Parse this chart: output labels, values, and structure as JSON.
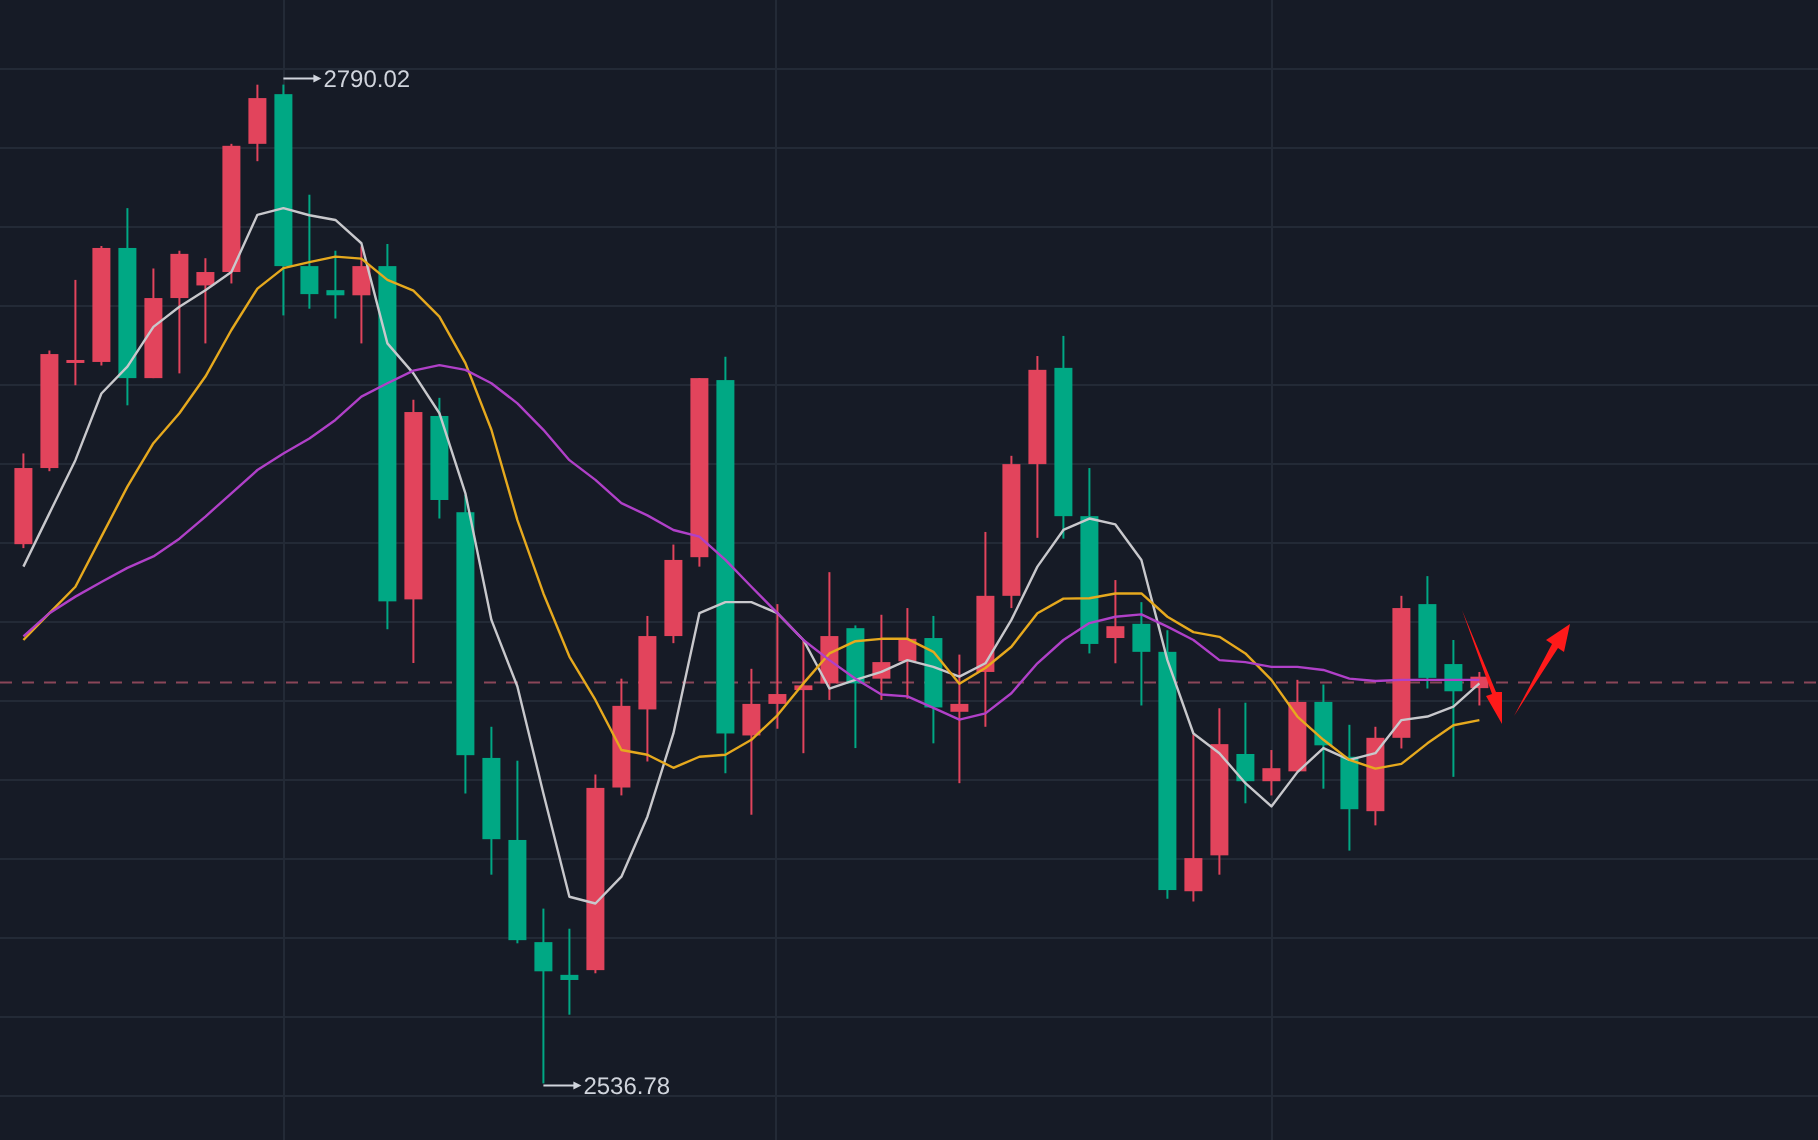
{
  "chart_data": {
    "type": "candlestick",
    "categories": [
      null,
      null,
      null,
      null,
      null,
      null,
      null,
      null,
      null,
      null,
      null,
      null,
      null,
      null,
      null,
      null,
      null,
      null,
      null,
      null,
      null,
      null,
      null,
      null,
      null,
      null,
      null,
      null,
      null,
      null,
      null,
      null,
      null,
      null,
      null,
      null,
      null,
      null,
      null,
      null,
      null,
      null,
      null,
      null,
      null,
      null,
      null,
      null,
      null,
      null,
      null,
      null,
      null,
      null,
      null,
      null,
      null
    ],
    "ohlc": [
      [
        2673.5,
        2696.5,
        2672.5,
        2692.8
      ],
      [
        2692.8,
        2722.6,
        2692.0,
        2721.7
      ],
      [
        2720.0,
        2740.5,
        2713.8,
        2720.2
      ],
      [
        2719.7,
        2749.1,
        2718.8,
        2748.6
      ],
      [
        2748.6,
        2758.7,
        2708.7,
        2715.6
      ],
      [
        2715.6,
        2743.4,
        2715.6,
        2735.9
      ],
      [
        2735.9,
        2747.9,
        2716.8,
        2747.1
      ],
      [
        2739.1,
        2746.0,
        2724.4,
        2742.5
      ],
      [
        2742.5,
        2775.0,
        2739.6,
        2774.5
      ],
      [
        2775.0,
        2790.0,
        2770.6,
        2786.6
      ],
      [
        2787.6,
        2790.02,
        2731.5,
        2744.0
      ],
      [
        2744.0,
        2762.1,
        2733.2,
        2736.9
      ],
      [
        2737.9,
        2747.9,
        2730.7,
        2736.6
      ],
      [
        2736.6,
        2749.0,
        2724.4,
        2744.0
      ],
      [
        2744.0,
        2749.6,
        2651.9,
        2659.0
      ],
      [
        2659.5,
        2710.1,
        2643.4,
        2707.0
      ],
      [
        2706.0,
        2710.6,
        2680.0,
        2684.7
      ],
      [
        2681.6,
        2686.0,
        2610.3,
        2620.0
      ],
      [
        2619.3,
        2627.2,
        2589.7,
        2598.7
      ],
      [
        2598.5,
        2618.6,
        2572.3,
        2573.1
      ],
      [
        2572.6,
        2581.1,
        2536.78,
        2565.2
      ],
      [
        2564.3,
        2576.0,
        2554.2,
        2563.0
      ],
      [
        2565.5,
        2615.1,
        2564.7,
        2611.7
      ],
      [
        2611.8,
        2639.4,
        2609.8,
        2632.5
      ],
      [
        2631.6,
        2655.3,
        2618.4,
        2650.2
      ],
      [
        2650.2,
        2673.4,
        2648.4,
        2669.5
      ],
      [
        2670.2,
        2715.6,
        2667.8,
        2715.6
      ],
      [
        2715.1,
        2721.0,
        2615.4,
        2625.5
      ],
      [
        2625.0,
        2641.9,
        2604.9,
        2633.0
      ],
      [
        2633.0,
        2658.3,
        2626.7,
        2635.5
      ],
      [
        2636.5,
        2649.2,
        2620.5,
        2637.7
      ],
      [
        2638.2,
        2666.4,
        2634.0,
        2650.2
      ],
      [
        2652.2,
        2652.9,
        2621.8,
        2638.2
      ],
      [
        2639.4,
        2655.6,
        2634.0,
        2643.6
      ],
      [
        2643.8,
        2657.3,
        2634.3,
        2649.5
      ],
      [
        2649.7,
        2655.3,
        2623.0,
        2632.1
      ],
      [
        2631.0,
        2645.5,
        2612.9,
        2633.0
      ],
      [
        2641.1,
        2676.6,
        2627.2,
        2660.4
      ],
      [
        2660.4,
        2695.9,
        2657.3,
        2693.8
      ],
      [
        2693.8,
        2721.2,
        2675.1,
        2717.7
      ],
      [
        2718.2,
        2726.3,
        2674.9,
        2680.6
      ],
      [
        2680.6,
        2692.8,
        2645.8,
        2648.2
      ],
      [
        2649.7,
        2664.4,
        2643.3,
        2652.7
      ],
      [
        2653.3,
        2658.8,
        2632.6,
        2646.2
      ],
      [
        2646.2,
        2651.7,
        2583.6,
        2585.8
      ],
      [
        2585.5,
        2625.2,
        2582.9,
        2593.9
      ],
      [
        2594.6,
        2631.9,
        2589.7,
        2622.8
      ],
      [
        2620.3,
        2633.3,
        2607.8,
        2613.4
      ],
      [
        2613.4,
        2621.3,
        2609.8,
        2616.7
      ],
      [
        2615.9,
        2639.1,
        2615.9,
        2633.5
      ],
      [
        2633.5,
        2637.9,
        2611.5,
        2622.5
      ],
      [
        2619.6,
        2627.7,
        2595.8,
        2606.3
      ],
      [
        2605.8,
        2627.2,
        2602.2,
        2624.4
      ],
      [
        2624.4,
        2660.4,
        2621.7,
        2657.3
      ],
      [
        2658.3,
        2665.4,
        2636.9,
        2639.6
      ],
      [
        2643.1,
        2649.2,
        2614.5,
        2636.2
      ],
      [
        2637.0,
        2641.1,
        2632.6,
        2639.9
      ]
    ],
    "colors": [
      "#e2445c",
      "#e2445c",
      "#e2445c",
      "#e2445c",
      "#00a884",
      "#e2445c",
      "#e2445c",
      "#e2445c",
      "#e2445c",
      "#e2445c",
      "#00a884",
      "#00a884",
      "#00a884",
      "#e2445c",
      "#00a884",
      "#e2445c",
      "#00a884",
      "#00a884",
      "#00a884",
      "#00a884",
      "#00a884",
      "#00a884",
      "#e2445c",
      "#e2445c",
      "#e2445c",
      "#e2445c",
      "#e2445c",
      "#00a884",
      "#e2445c",
      "#e2445c",
      "#e2445c",
      "#e2445c",
      "#00a884",
      "#e2445c",
      "#e2445c",
      "#00a884",
      "#e2445c",
      "#e2445c",
      "#e2445c",
      "#e2445c",
      "#00a884",
      "#00a884",
      "#e2445c",
      "#00a884",
      "#00a884",
      "#e2445c",
      "#e2445c",
      "#00a884",
      "#e2445c",
      "#e2445c",
      "#00a884",
      "#00a884",
      "#e2445c",
      "#e2445c",
      "#00a884",
      "#00a884",
      "#e2445c"
    ],
    "series": [
      {
        "type": "line",
        "color": "#c8c8cc",
        "values": [
          2667.8,
          2681.3,
          2694.8,
          2711.7,
          2718.5,
          2728.6,
          2733.7,
          2737.9,
          2742.5,
          2757.0,
          2758.7,
          2756.9,
          2755.7,
          2749.8,
          2724.4,
          2716.8,
          2706.7,
          2686.4,
          2654.3,
          2637.4,
          2610.3,
          2584.1,
          2582.4,
          2589.2,
          2604.4,
          2625.5,
          2656.0,
          2658.8,
          2658.8,
          2656.0,
          2649.2,
          2636.9,
          2639.1,
          2641.1,
          2644.1,
          2642.4,
          2639.9,
          2643.3,
          2654.3,
          2667.8,
          2677.1,
          2680.0,
          2678.5,
          2669.5,
          2644.1,
          2625.5,
          2620.5,
          2612.9,
          2607.0,
          2615.7,
          2621.8,
          2618.8,
          2620.5,
          2628.9,
          2629.8,
          2632.3,
          2638.2
        ]
      },
      {
        "type": "line",
        "color": "#e6a91e",
        "values": [
          2649.2,
          2656.0,
          2662.7,
          2675.4,
          2688.1,
          2699.1,
          2706.7,
          2716.0,
          2727.8,
          2738.3,
          2743.5,
          2745.0,
          2746.4,
          2745.9,
          2740.5,
          2737.8,
          2731.2,
          2719.4,
          2702.5,
          2679.6,
          2661.0,
          2645.0,
          2634.0,
          2621.3,
          2620.1,
          2616.8,
          2619.6,
          2620.1,
          2623.9,
          2630.1,
          2638.2,
          2645.8,
          2648.9,
          2649.5,
          2649.5,
          2646.2,
          2638.1,
          2642.1,
          2647.5,
          2656.0,
          2659.7,
          2659.8,
          2661.0,
          2661.0,
          2655.1,
          2651.2,
          2650.0,
          2645.8,
          2639.1,
          2629.8,
          2623.9,
          2618.8,
          2616.6,
          2617.8,
          2623.0,
          2627.6,
          2628.9
        ]
      },
      {
        "type": "line",
        "color": "#b040c8",
        "values": [
          2650.1,
          2656.0,
          2660.2,
          2663.9,
          2667.5,
          2670.4,
          2674.9,
          2680.5,
          2686.4,
          2692.3,
          2696.5,
          2700.3,
          2705.0,
          2710.9,
          2714.3,
          2717.5,
          2718.9,
          2717.7,
          2714.3,
          2709.2,
          2702.5,
          2694.8,
          2689.8,
          2683.9,
          2680.8,
          2677.1,
          2675.4,
          2669.5,
          2662.7,
          2656.0,
          2649.2,
          2644.1,
          2639.4,
          2635.4,
          2634.9,
          2632.0,
          2629.0,
          2630.6,
          2635.7,
          2643.3,
          2649.2,
          2653.5,
          2655.1,
          2655.7,
          2652.6,
          2649.2,
          2644.1,
          2643.6,
          2642.4,
          2642.4,
          2641.6,
          2639.4,
          2638.8,
          2639.1,
          2639.1,
          2639.1,
          2639.1
        ]
      }
    ],
    "ref_lines": [
      {
        "axis": "y",
        "value": 2638.4,
        "color": "#8a4658",
        "line_style": "dashed"
      }
    ],
    "annotations": [
      "2790.02",
      "2536.78"
    ],
    "grid": true
  }
}
